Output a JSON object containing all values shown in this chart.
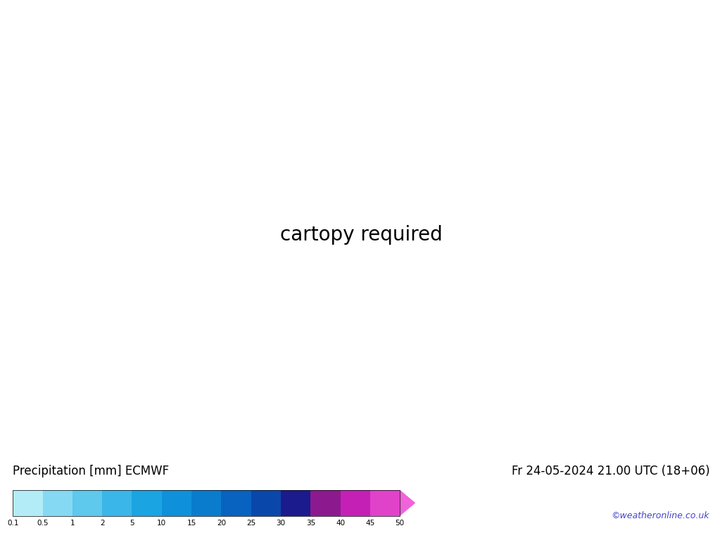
{
  "title_left": "Precipitation [mm] ECMWF",
  "title_right": "Fr 24-05-2024 21.00 UTC (18+06)",
  "credit": "©weatheronline.co.uk",
  "colorbar_levels": [
    0.1,
    0.5,
    1,
    2,
    5,
    10,
    15,
    20,
    25,
    30,
    35,
    40,
    45,
    50
  ],
  "colorbar_colors": [
    "#b3ecf7",
    "#85d9f2",
    "#5ec8ed",
    "#3ab6e8",
    "#1aa4e2",
    "#0e91da",
    "#0a7cce",
    "#0862c0",
    "#0a47aa",
    "#1b1b8e",
    "#8c1a8e",
    "#c520b6",
    "#e042ca",
    "#f262da"
  ],
  "bg_color": "#ffffff",
  "ocean_color": "#d8eef5",
  "land_color_green": "#c8dc96",
  "land_color_grey": "#d8d8d8",
  "label_fontsize": 12,
  "credit_fontsize": 9,
  "credit_color": "#4444cc",
  "isobar_blue_color": "#0000cc",
  "isobar_red_color": "#cc0000",
  "map_extent": [
    -30,
    40,
    30,
    75
  ]
}
